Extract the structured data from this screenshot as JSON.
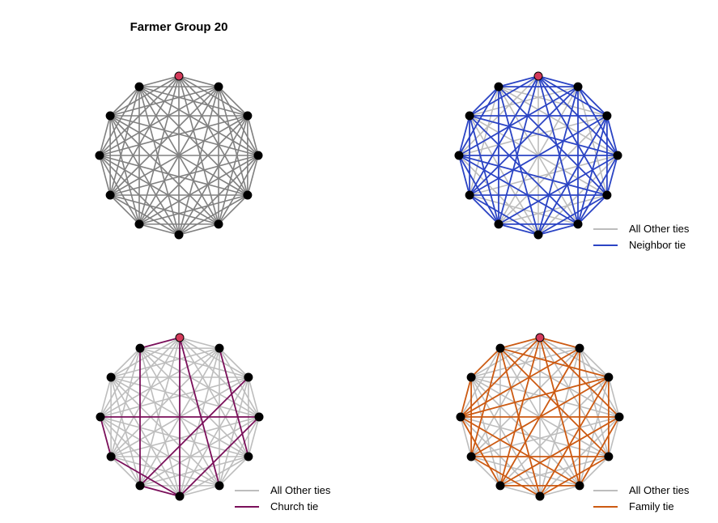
{
  "figure": {
    "title": "Farmer Group 20"
  },
  "colors": {
    "base_edge": "#808080",
    "other_edge": "#bdbdbd",
    "neighbor": "#2b44c4",
    "church": "#7a0f5a",
    "family": "#cc5a12",
    "node": "#000000",
    "focal_node": "#d43a5a"
  },
  "panels": [
    {
      "id": "all",
      "legend": null
    },
    {
      "id": "neighbor",
      "legend": {
        "other_label": "All Other ties",
        "tie_label": "Neighbor tie"
      }
    },
    {
      "id": "church",
      "legend": {
        "other_label": "All Other ties",
        "tie_label": "Church tie"
      }
    },
    {
      "id": "family",
      "legend": {
        "other_label": "All Other ties",
        "tie_label": "Family tie"
      }
    }
  ],
  "network": {
    "node_count": 12,
    "focal_node": 0,
    "edges": [
      [
        0,
        1
      ],
      [
        0,
        2
      ],
      [
        0,
        3
      ],
      [
        0,
        4
      ],
      [
        0,
        5
      ],
      [
        0,
        6
      ],
      [
        0,
        7
      ],
      [
        0,
        8
      ],
      [
        0,
        9
      ],
      [
        0,
        10
      ],
      [
        0,
        11
      ],
      [
        1,
        2
      ],
      [
        1,
        3
      ],
      [
        1,
        4
      ],
      [
        1,
        5
      ],
      [
        1,
        6
      ],
      [
        1,
        7
      ],
      [
        1,
        8
      ],
      [
        1,
        9
      ],
      [
        1,
        10
      ],
      [
        1,
        11
      ],
      [
        2,
        3
      ],
      [
        2,
        4
      ],
      [
        2,
        5
      ],
      [
        2,
        6
      ],
      [
        2,
        7
      ],
      [
        2,
        8
      ],
      [
        2,
        9
      ],
      [
        2,
        10
      ],
      [
        2,
        11
      ],
      [
        3,
        4
      ],
      [
        3,
        5
      ],
      [
        3,
        6
      ],
      [
        3,
        7
      ],
      [
        3,
        8
      ],
      [
        3,
        9
      ],
      [
        3,
        10
      ],
      [
        3,
        11
      ],
      [
        4,
        5
      ],
      [
        4,
        6
      ],
      [
        4,
        7
      ],
      [
        4,
        8
      ],
      [
        4,
        9
      ],
      [
        4,
        10
      ],
      [
        4,
        11
      ],
      [
        5,
        6
      ],
      [
        5,
        7
      ],
      [
        5,
        8
      ],
      [
        5,
        9
      ],
      [
        5,
        10
      ],
      [
        5,
        11
      ],
      [
        6,
        7
      ],
      [
        6,
        8
      ],
      [
        6,
        9
      ],
      [
        6,
        10
      ],
      [
        6,
        11
      ],
      [
        7,
        8
      ],
      [
        7,
        9
      ],
      [
        7,
        10
      ],
      [
        7,
        11
      ],
      [
        8,
        9
      ],
      [
        8,
        10
      ],
      [
        8,
        11
      ],
      [
        9,
        10
      ],
      [
        9,
        11
      ],
      [
        10,
        11
      ]
    ],
    "neighbor_ties": [
      [
        0,
        1
      ],
      [
        0,
        2
      ],
      [
        0,
        3
      ],
      [
        0,
        4
      ],
      [
        0,
        5
      ],
      [
        0,
        7
      ],
      [
        0,
        8
      ],
      [
        0,
        10
      ],
      [
        0,
        11
      ],
      [
        1,
        2
      ],
      [
        1,
        3
      ],
      [
        1,
        5
      ],
      [
        1,
        6
      ],
      [
        1,
        8
      ],
      [
        1,
        9
      ],
      [
        1,
        11
      ],
      [
        2,
        3
      ],
      [
        2,
        4
      ],
      [
        2,
        5
      ],
      [
        2,
        6
      ],
      [
        2,
        8
      ],
      [
        2,
        10
      ],
      [
        3,
        4
      ],
      [
        3,
        5
      ],
      [
        3,
        7
      ],
      [
        3,
        9
      ],
      [
        3,
        10
      ],
      [
        4,
        5
      ],
      [
        4,
        6
      ],
      [
        4,
        8
      ],
      [
        4,
        9
      ],
      [
        4,
        11
      ],
      [
        5,
        6
      ],
      [
        5,
        7
      ],
      [
        5,
        9
      ],
      [
        5,
        10
      ],
      [
        6,
        7
      ],
      [
        6,
        8
      ],
      [
        6,
        11
      ],
      [
        7,
        8
      ],
      [
        7,
        9
      ],
      [
        7,
        10
      ],
      [
        7,
        11
      ],
      [
        8,
        9
      ],
      [
        8,
        10
      ],
      [
        9,
        10
      ],
      [
        9,
        11
      ],
      [
        10,
        11
      ]
    ],
    "church_ties": [
      [
        0,
        11
      ],
      [
        0,
        6
      ],
      [
        0,
        5
      ],
      [
        2,
        7
      ],
      [
        3,
        9
      ],
      [
        3,
        6
      ],
      [
        9,
        8
      ],
      [
        11,
        7
      ],
      [
        8,
        6
      ],
      [
        1,
        4
      ],
      [
        6,
        7
      ]
    ],
    "family_ties": [
      [
        0,
        1
      ],
      [
        0,
        3
      ],
      [
        0,
        5
      ],
      [
        0,
        7
      ],
      [
        0,
        9
      ],
      [
        0,
        11
      ],
      [
        1,
        5
      ],
      [
        1,
        7
      ],
      [
        1,
        9
      ],
      [
        2,
        4
      ],
      [
        2,
        6
      ],
      [
        2,
        8
      ],
      [
        2,
        9
      ],
      [
        2,
        11
      ],
      [
        3,
        5
      ],
      [
        3,
        7
      ],
      [
        3,
        9
      ],
      [
        4,
        6
      ],
      [
        4,
        8
      ],
      [
        4,
        11
      ],
      [
        5,
        7
      ],
      [
        5,
        9
      ],
      [
        6,
        8
      ],
      [
        6,
        11
      ],
      [
        7,
        9
      ],
      [
        8,
        10
      ],
      [
        8,
        11
      ],
      [
        9,
        10
      ],
      [
        10,
        11
      ]
    ]
  }
}
